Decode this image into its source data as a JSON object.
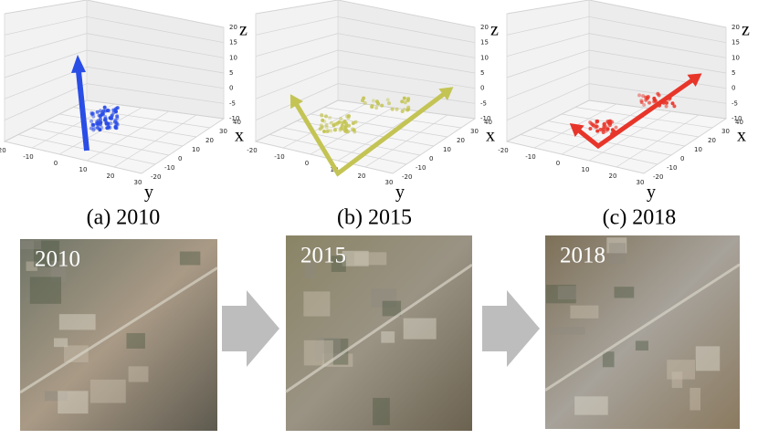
{
  "panels": [
    {
      "caption": "(a) 2010",
      "image_label": "2010",
      "color": "#2a4de6",
      "z_label": "z",
      "x_label": "x",
      "y_label": "y",
      "z_ticks": [
        -10,
        -5,
        0,
        5,
        10,
        15,
        20
      ],
      "x_ticks": [
        -20,
        -10,
        0,
        10,
        20,
        30,
        40
      ],
      "y_ticks": [
        -20,
        -10,
        0,
        10,
        20,
        30
      ]
    },
    {
      "caption": "(b) 2015",
      "image_label": "2015",
      "color": "#c4c455",
      "z_label": "z",
      "x_label": "x",
      "y_label": "y",
      "z_ticks": [
        -10,
        -5,
        0,
        5,
        10,
        15,
        20
      ],
      "x_ticks": [
        -20,
        -10,
        0,
        10,
        20,
        30,
        40
      ],
      "y_ticks": [
        -20,
        -10,
        0,
        10,
        20,
        30
      ]
    },
    {
      "caption": "(c) 2018",
      "image_label": "2018",
      "color": "#e8352a",
      "z_label": "z",
      "x_label": "x",
      "y_label": "y",
      "z_ticks": [
        -10,
        -5,
        0,
        5,
        10,
        15,
        20
      ],
      "x_ticks": [
        -20,
        -10,
        0,
        10,
        20,
        30,
        40
      ],
      "y_ticks": [
        -20,
        -10,
        0,
        10,
        20,
        30
      ]
    }
  ]
}
